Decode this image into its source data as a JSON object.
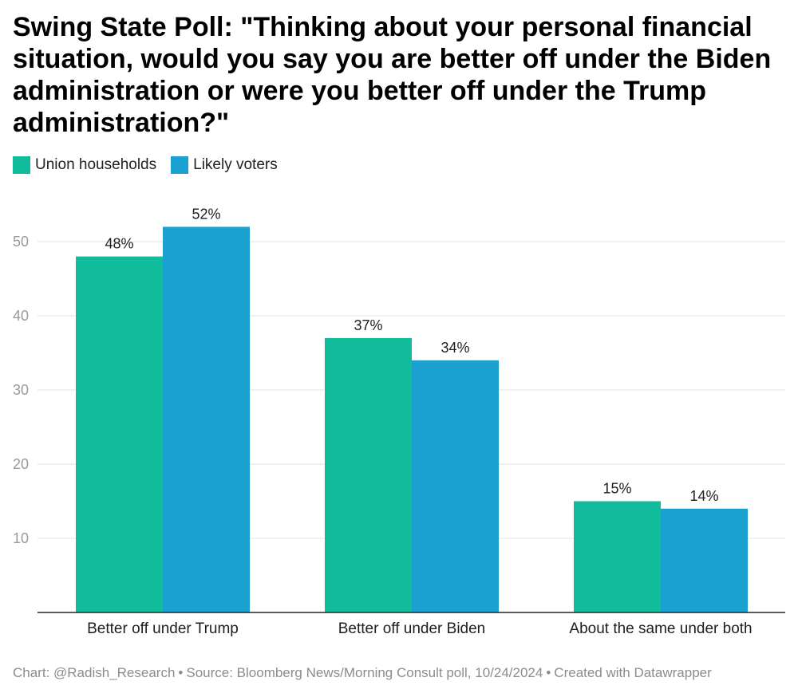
{
  "title": "Swing State Poll: \"Thinking about your personal financial situation, would you say you are better off under the Biden administration or were you better off under the Trump administration?\"",
  "legend": [
    {
      "label": "Union households",
      "color": "#10bc9b"
    },
    {
      "label": "Likely voters",
      "color": "#1aa1cf"
    }
  ],
  "chart_data": {
    "type": "bar",
    "title": "Swing State Poll: \"Thinking about your personal financial situation, would you say you are better off under the Biden administration or were you better off under the Trump administration?\"",
    "categories": [
      "Better off under Trump",
      "Better off under Biden",
      "About the same under both"
    ],
    "series": [
      {
        "name": "Union households",
        "color": "#10bc9b",
        "values": [
          48,
          37,
          15
        ],
        "labels": [
          "48%",
          "37%",
          "15%"
        ]
      },
      {
        "name": "Likely voters",
        "color": "#1aa1cf",
        "values": [
          52,
          34,
          14
        ],
        "labels": [
          "52%",
          "34%",
          "14%"
        ]
      }
    ],
    "yticks": [
      10,
      20,
      30,
      40,
      50
    ],
    "ylim": [
      0,
      55
    ],
    "xlabel": "",
    "ylabel": "",
    "grid": true,
    "legend_position": "top-left"
  },
  "footer": {
    "credit": "Chart: @Radish_Research",
    "source": "Source: Bloomberg News/Morning Consult poll, 10/24/2024",
    "tool": "Created with Datawrapper"
  }
}
